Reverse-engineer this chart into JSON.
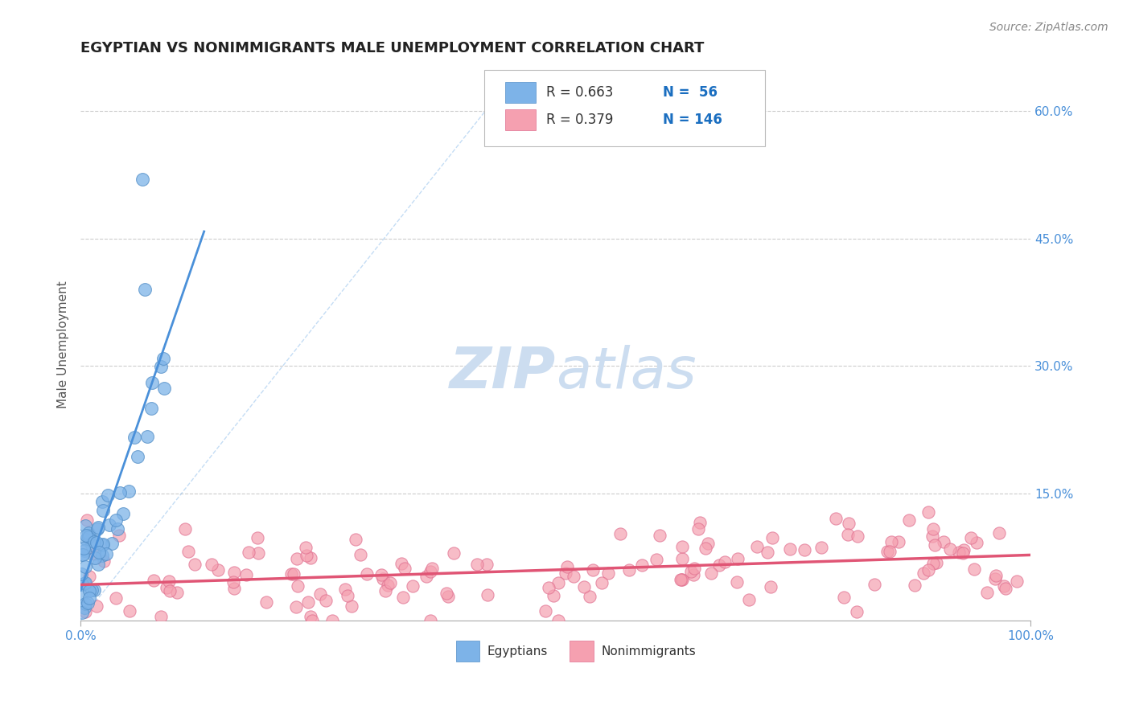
{
  "title": "EGYPTIAN VS NONIMMIGRANTS MALE UNEMPLOYMENT CORRELATION CHART",
  "source_text": "Source: ZipAtlas.com",
  "xlabel": "",
  "ylabel": "Male Unemployment",
  "x_tick_labels": [
    "0.0%",
    "100.0%"
  ],
  "y_tick_labels": [
    "15.0%",
    "30.0%",
    "45.0%",
    "60.0%"
  ],
  "y_tick_values": [
    0.15,
    0.3,
    0.45,
    0.6
  ],
  "xlim": [
    0.0,
    1.0
  ],
  "ylim": [
    0.0,
    0.65
  ],
  "background_color": "#ffffff",
  "grid_color": "#cccccc",
  "egyptian_color": "#7db3e8",
  "egyptian_edge_color": "#5590c8",
  "nonimmigrant_color": "#f5a0b0",
  "nonimmigrant_edge_color": "#e07090",
  "trend_egyptian_color": "#4a90d9",
  "trend_nonimmigrant_color": "#e05575",
  "R_egyptian": 0.663,
  "N_egyptian": 56,
  "R_nonimmigrant": 0.379,
  "N_nonimmigrant": 146,
  "title_color": "#222222",
  "source_color": "#888888",
  "legend_text_color": "#1a6ec0",
  "axis_label_color": "#4a90d9",
  "watermark_zip": "ZIP",
  "watermark_atlas": "atlas",
  "watermark_color": "#ccddf0"
}
